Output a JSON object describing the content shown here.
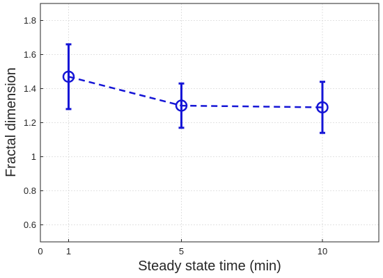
{
  "chart_data": {
    "type": "line",
    "xlabel": "Steady state time (min)",
    "ylabel": "Fractal dimension",
    "xlim": [
      0,
      12
    ],
    "ylim": [
      0.5,
      1.9
    ],
    "x_ticks": [
      "0",
      "1",
      "5",
      "10"
    ],
    "x_tick_values": [
      0,
      1,
      5,
      10
    ],
    "y_ticks": [
      "0.6",
      "0.8",
      "1",
      "1.2",
      "1.4",
      "1.6",
      "1.8"
    ],
    "y_tick_values": [
      0.6,
      0.8,
      1.0,
      1.2,
      1.4,
      1.6,
      1.8
    ],
    "grid": true,
    "series": [
      {
        "x": [
          1,
          5,
          10
        ],
        "y": [
          1.47,
          1.3,
          1.29
        ],
        "error_low": [
          1.28,
          1.17,
          1.14
        ],
        "error_high": [
          1.66,
          1.43,
          1.44
        ],
        "line_style": "dashed",
        "marker": "circle",
        "color": "#1515d6"
      }
    ]
  }
}
